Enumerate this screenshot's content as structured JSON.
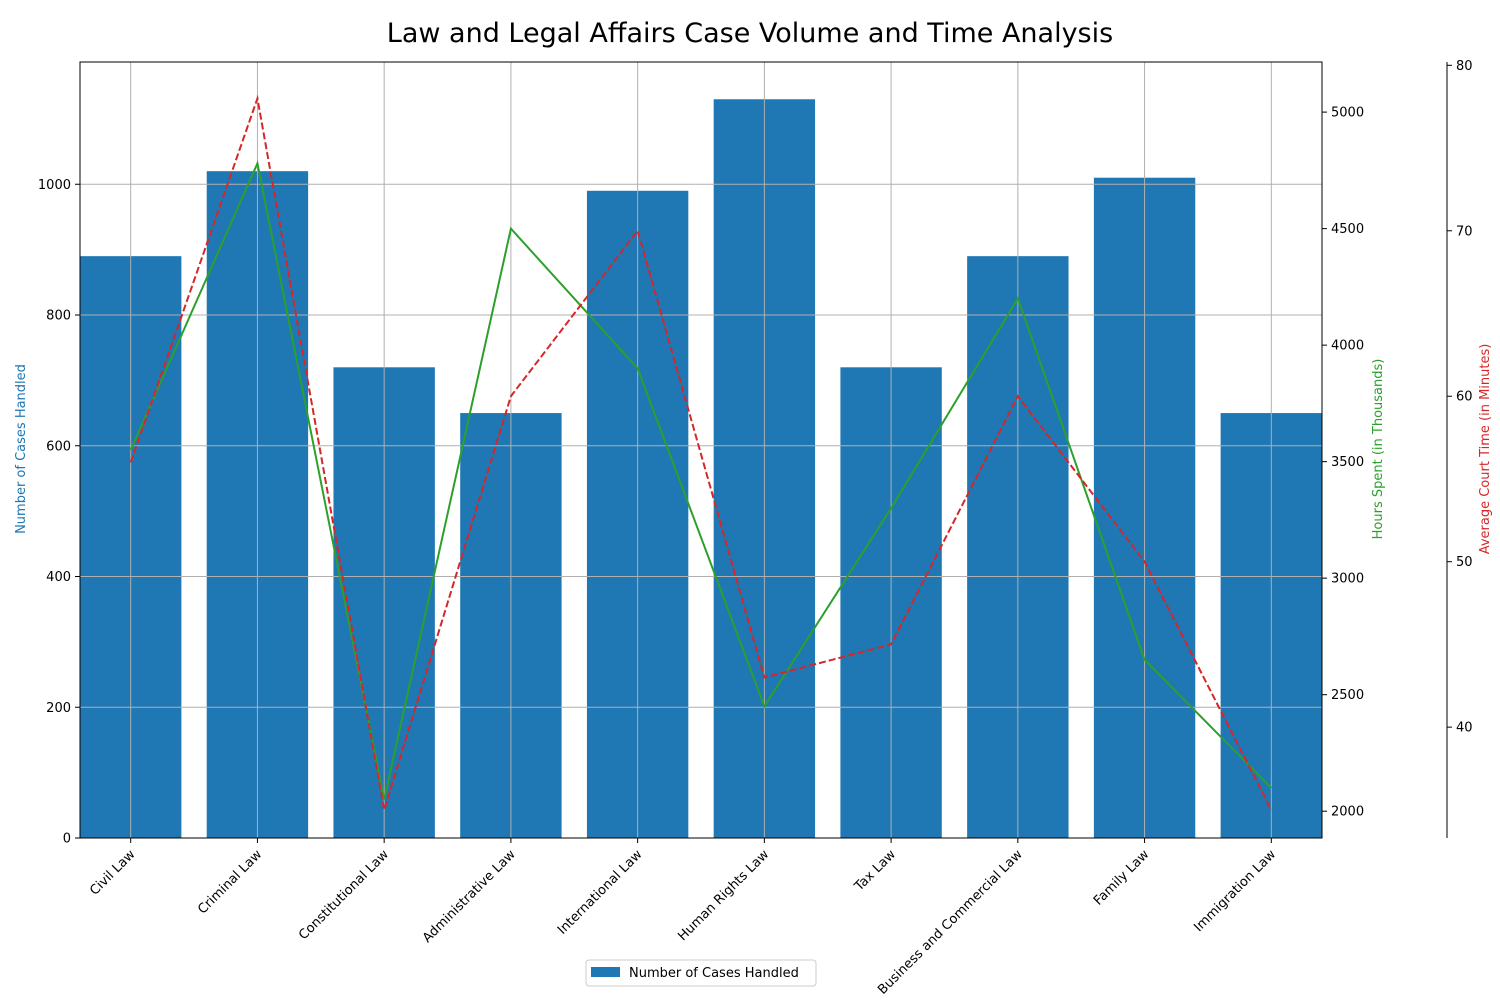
{
  "chart_data": {
    "type": "bar",
    "title": "Law and Legal Affairs Case Volume and Time Analysis",
    "categories": [
      "Civil Law",
      "Criminal Law",
      "Constitutional Law",
      "Administrative Law",
      "International Law",
      "Human Rights Law",
      "Tax Law",
      "Business and Commercial Law",
      "Family Law",
      "Immigration Law"
    ],
    "series": [
      {
        "name": "Number of Cases Handled",
        "type": "bar",
        "axis": "left",
        "color": "#1f77b4",
        "values": [
          890,
          1020,
          720,
          650,
          990,
          1130,
          720,
          890,
          1010,
          650
        ]
      },
      {
        "type": "line",
        "axis": "right",
        "color": "#2ca02c",
        "line_style": "solid",
        "values": [
          3550,
          4780,
          2050,
          4500,
          3900,
          2450,
          3300,
          4200,
          2650,
          2100
        ]
      },
      {
        "type": "line",
        "axis": "right2",
        "color": "#d62728",
        "line_style": "dashed",
        "values": [
          56,
          78,
          35,
          60,
          70,
          43,
          45,
          60,
          50,
          35
        ]
      }
    ],
    "axes": {
      "left": {
        "label": "Number of Cases Handled",
        "color": "#1f77b4",
        "ylim": [
          0,
          1187
        ],
        "ticks": [
          0,
          200,
          400,
          600,
          800,
          1000
        ]
      },
      "right": {
        "label": "Hours Spent (in Thousands)",
        "color": "#2ca02c",
        "ylim": [
          1885,
          5215
        ],
        "ticks": [
          2000,
          2500,
          3000,
          3500,
          4000,
          4500,
          5000
        ]
      },
      "right2": {
        "label": "Average Court Time (in Minutes)",
        "color": "#d62728",
        "ylim": [
          33.3,
          80.2
        ],
        "ticks": [
          40,
          50,
          60,
          70,
          80
        ]
      }
    },
    "grid": true,
    "legend": {
      "position": "bottom-center",
      "entries": [
        "Number of Cases Handled"
      ]
    }
  }
}
